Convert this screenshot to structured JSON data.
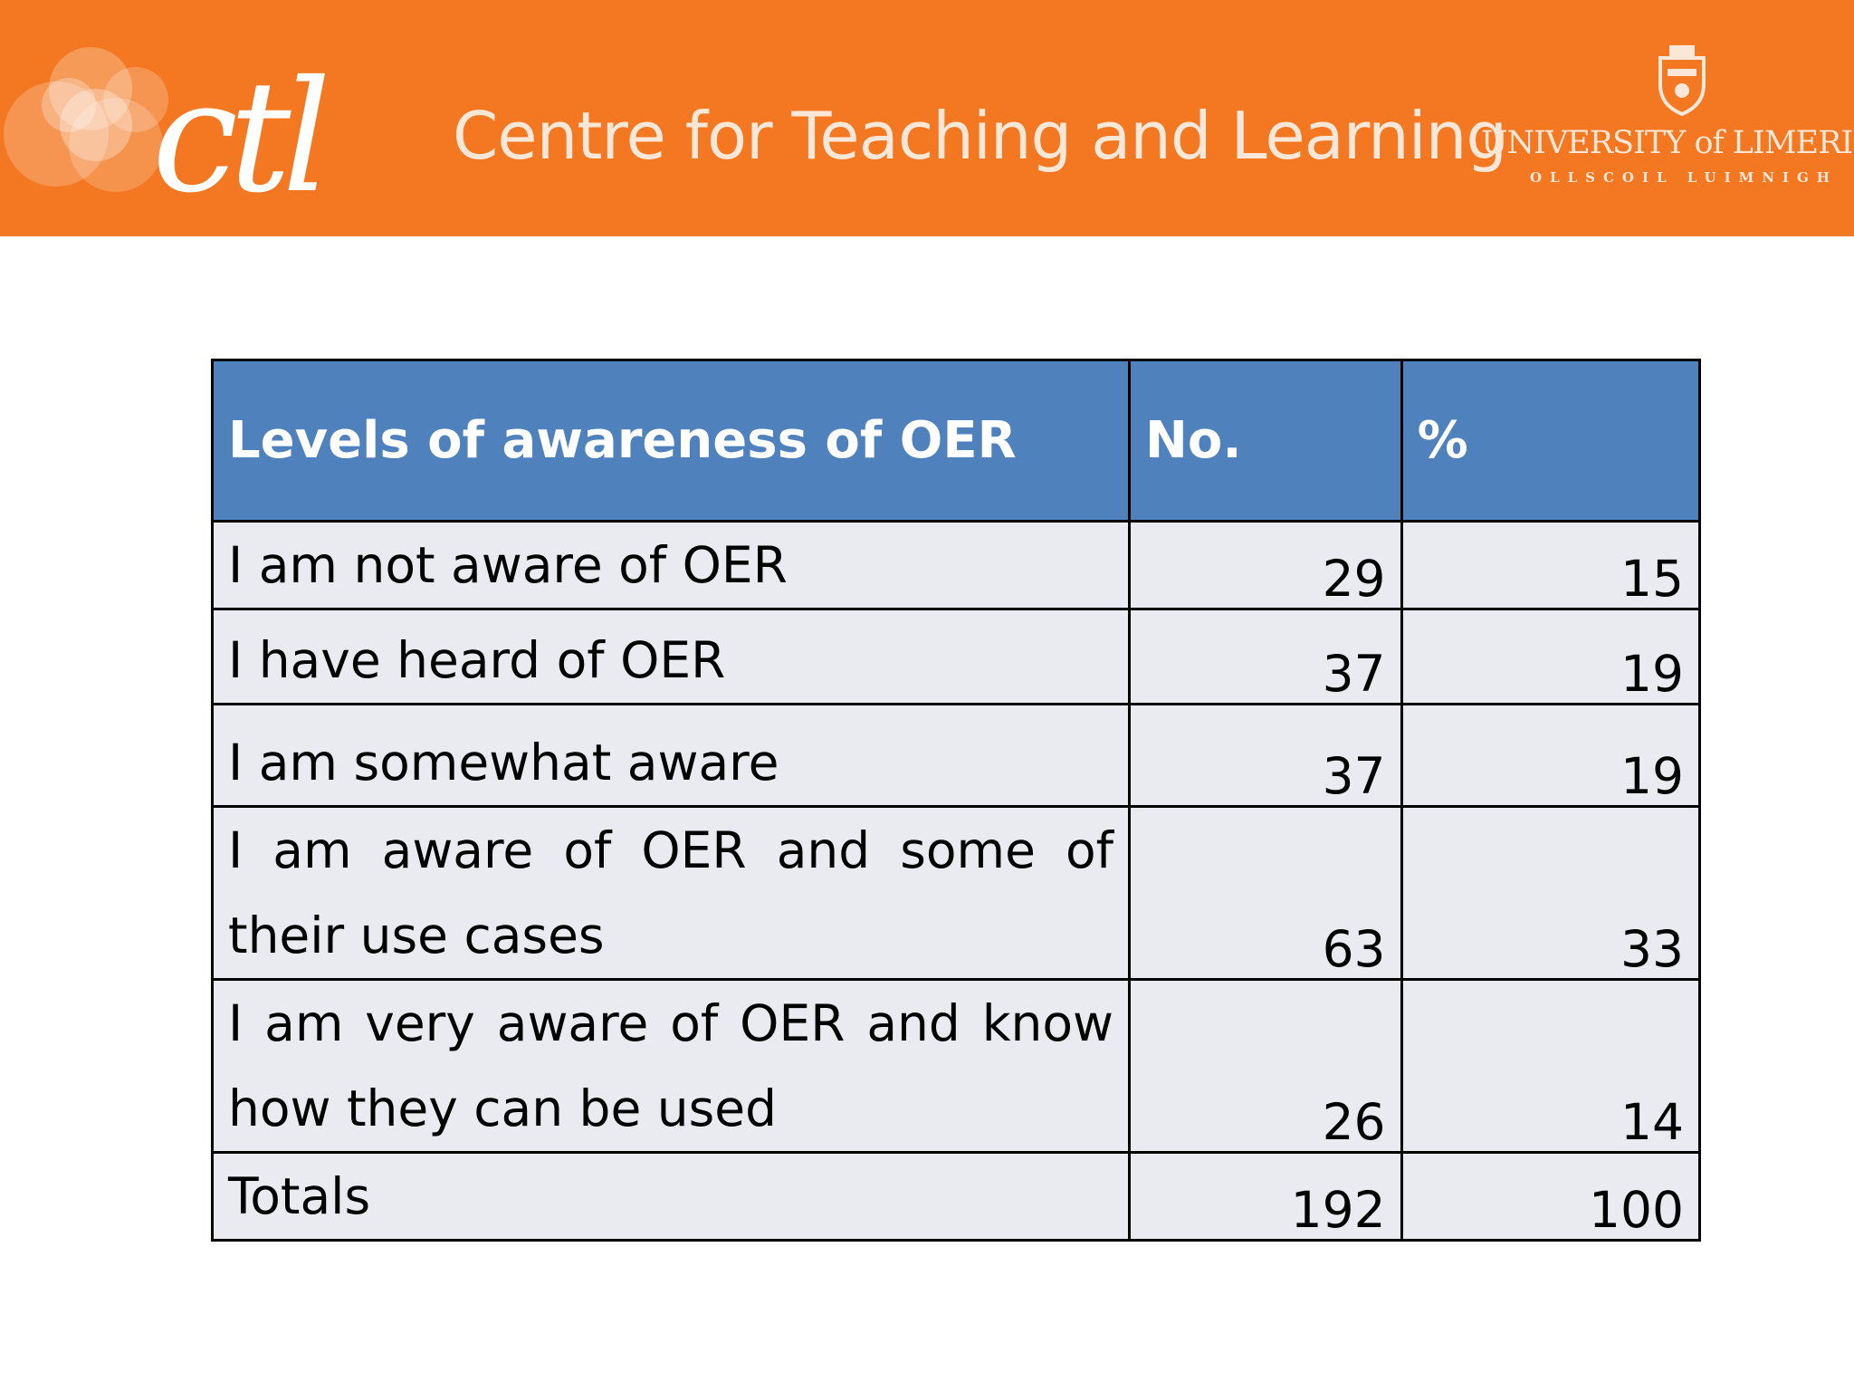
{
  "header": {
    "logo_text": "ctl",
    "centre_title": "Centre for Teaching and Learning",
    "university_name": "UNIVERSITY of LIMERICK",
    "university_subtitle": "OLLSCOIL LUIMNIGH",
    "background_color": "#f37821",
    "text_color": "#fbe7d8",
    "logo_icon": "ctl-circles-logo",
    "crest_icon": "university-crest-icon"
  },
  "table": {
    "header_color": "#4f81bd",
    "row_color": "#e9ebf1",
    "columns": [
      "Levels of awareness of OER",
      "No.",
      "%"
    ],
    "rows": [
      {
        "label": "I am not aware of OER",
        "no": "29",
        "pct": "15"
      },
      {
        "label": "I have heard of OER",
        "no": "37",
        "pct": "19"
      },
      {
        "label": "I am somewhat aware",
        "no": "37",
        "pct": "19"
      },
      {
        "label": "I am aware of OER and some of their use cases",
        "no": "63",
        "pct": "33"
      },
      {
        "label": "I am very aware of OER and know how they can be used",
        "no": "26",
        "pct": "14"
      },
      {
        "label": "Totals",
        "no": "192",
        "pct": "100"
      }
    ]
  }
}
